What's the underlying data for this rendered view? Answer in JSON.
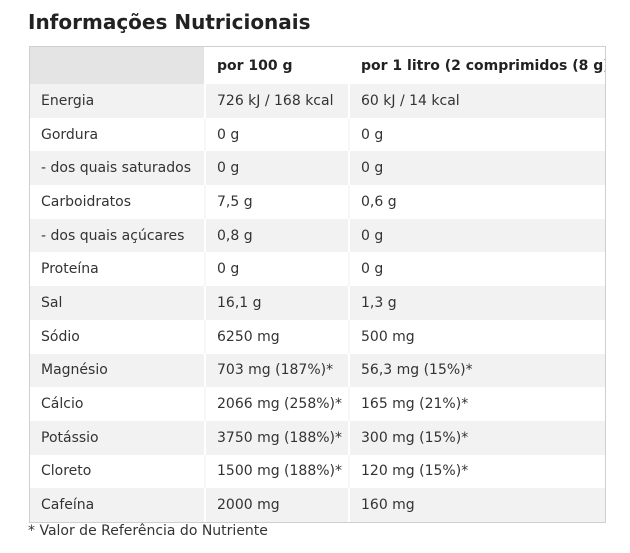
{
  "title": "Informações Nutricionais",
  "table": {
    "headers": [
      "",
      "por 100 g",
      "por 1 litro (2 comprimidos (8 g)"
    ],
    "rows": [
      [
        "Energia",
        "726 kJ / 168 kcal",
        "60 kJ / 14 kcal"
      ],
      [
        "Gordura",
        "0 g",
        "0 g"
      ],
      [
        "- dos quais saturados",
        "0 g",
        "0 g"
      ],
      [
        "Carboidratos",
        "7,5 g",
        "0,6 g"
      ],
      [
        "- dos quais açúcares",
        "0,8 g",
        "0 g"
      ],
      [
        "Proteína",
        "0 g",
        "0 g"
      ],
      [
        "Sal",
        "16,1 g",
        "1,3 g"
      ],
      [
        "Sódio",
        "6250 mg",
        "500 mg"
      ],
      [
        "Magnésio",
        "703 mg (187%)*",
        "56,3 mg (15%)*"
      ],
      [
        "Cálcio",
        "2066 mg (258%)*",
        "165 mg (21%)*"
      ],
      [
        "Potássio",
        "3750 mg (188%)*",
        "300 mg (15%)*"
      ],
      [
        "Cloreto",
        "1500 mg (188%)*",
        "120 mg (15%)*"
      ],
      [
        "Cafeína",
        "2000 mg",
        "160 mg"
      ]
    ]
  },
  "footnote": "* Valor de Referência do Nutriente"
}
